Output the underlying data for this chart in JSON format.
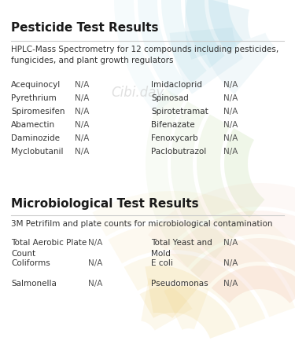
{
  "bg_color": "#ffffff",
  "pesticide_title": "Pesticide Test Results",
  "pesticide_subtitle": "HPLC-Mass Spectrometry for 12 compounds including pesticides,\nfungicides, and plant growth regulators",
  "pesticide_left": [
    [
      "Acequinocyl",
      "N/A"
    ],
    [
      "Pyrethrium",
      "N/A"
    ],
    [
      "Spiromesifen",
      "N/A"
    ],
    [
      "Abamectin",
      "N/A"
    ],
    [
      "Daminozide",
      "N/A"
    ],
    [
      "Myclobutanil",
      "N/A"
    ]
  ],
  "pesticide_right": [
    [
      "Imidacloprid",
      "N/A"
    ],
    [
      "Spinosad",
      "N/A"
    ],
    [
      "Spirotetramat",
      "N/A"
    ],
    [
      "Bifenazate",
      "N/A"
    ],
    [
      "Fenoxycarb",
      "N/A"
    ],
    [
      "Paclobutrazol",
      "N/A"
    ]
  ],
  "micro_title": "Microbiological Test Results",
  "micro_subtitle": "3M Petrifilm and plate counts for microbiological contamination",
  "micro_left": [
    [
      "Total Aerobic Plate\nCount",
      "N/A"
    ],
    [
      "Coliforms",
      "N/A"
    ],
    [
      "Salmonella",
      "N/A"
    ]
  ],
  "micro_right": [
    [
      "Total Yeast and\nMold",
      "N/A"
    ],
    [
      "E coli",
      "N/A"
    ],
    [
      "Pseudomonas",
      "N/A"
    ]
  ],
  "watermark": "Cibi.day",
  "title_fontsize": 11,
  "subtitle_fontsize": 7.5,
  "item_fontsize": 7.5,
  "title_color": "#1a1a1a",
  "text_color": "#333333",
  "na_color": "#555555",
  "line_color": "#cccccc",
  "watermark_color": "#cccccc"
}
